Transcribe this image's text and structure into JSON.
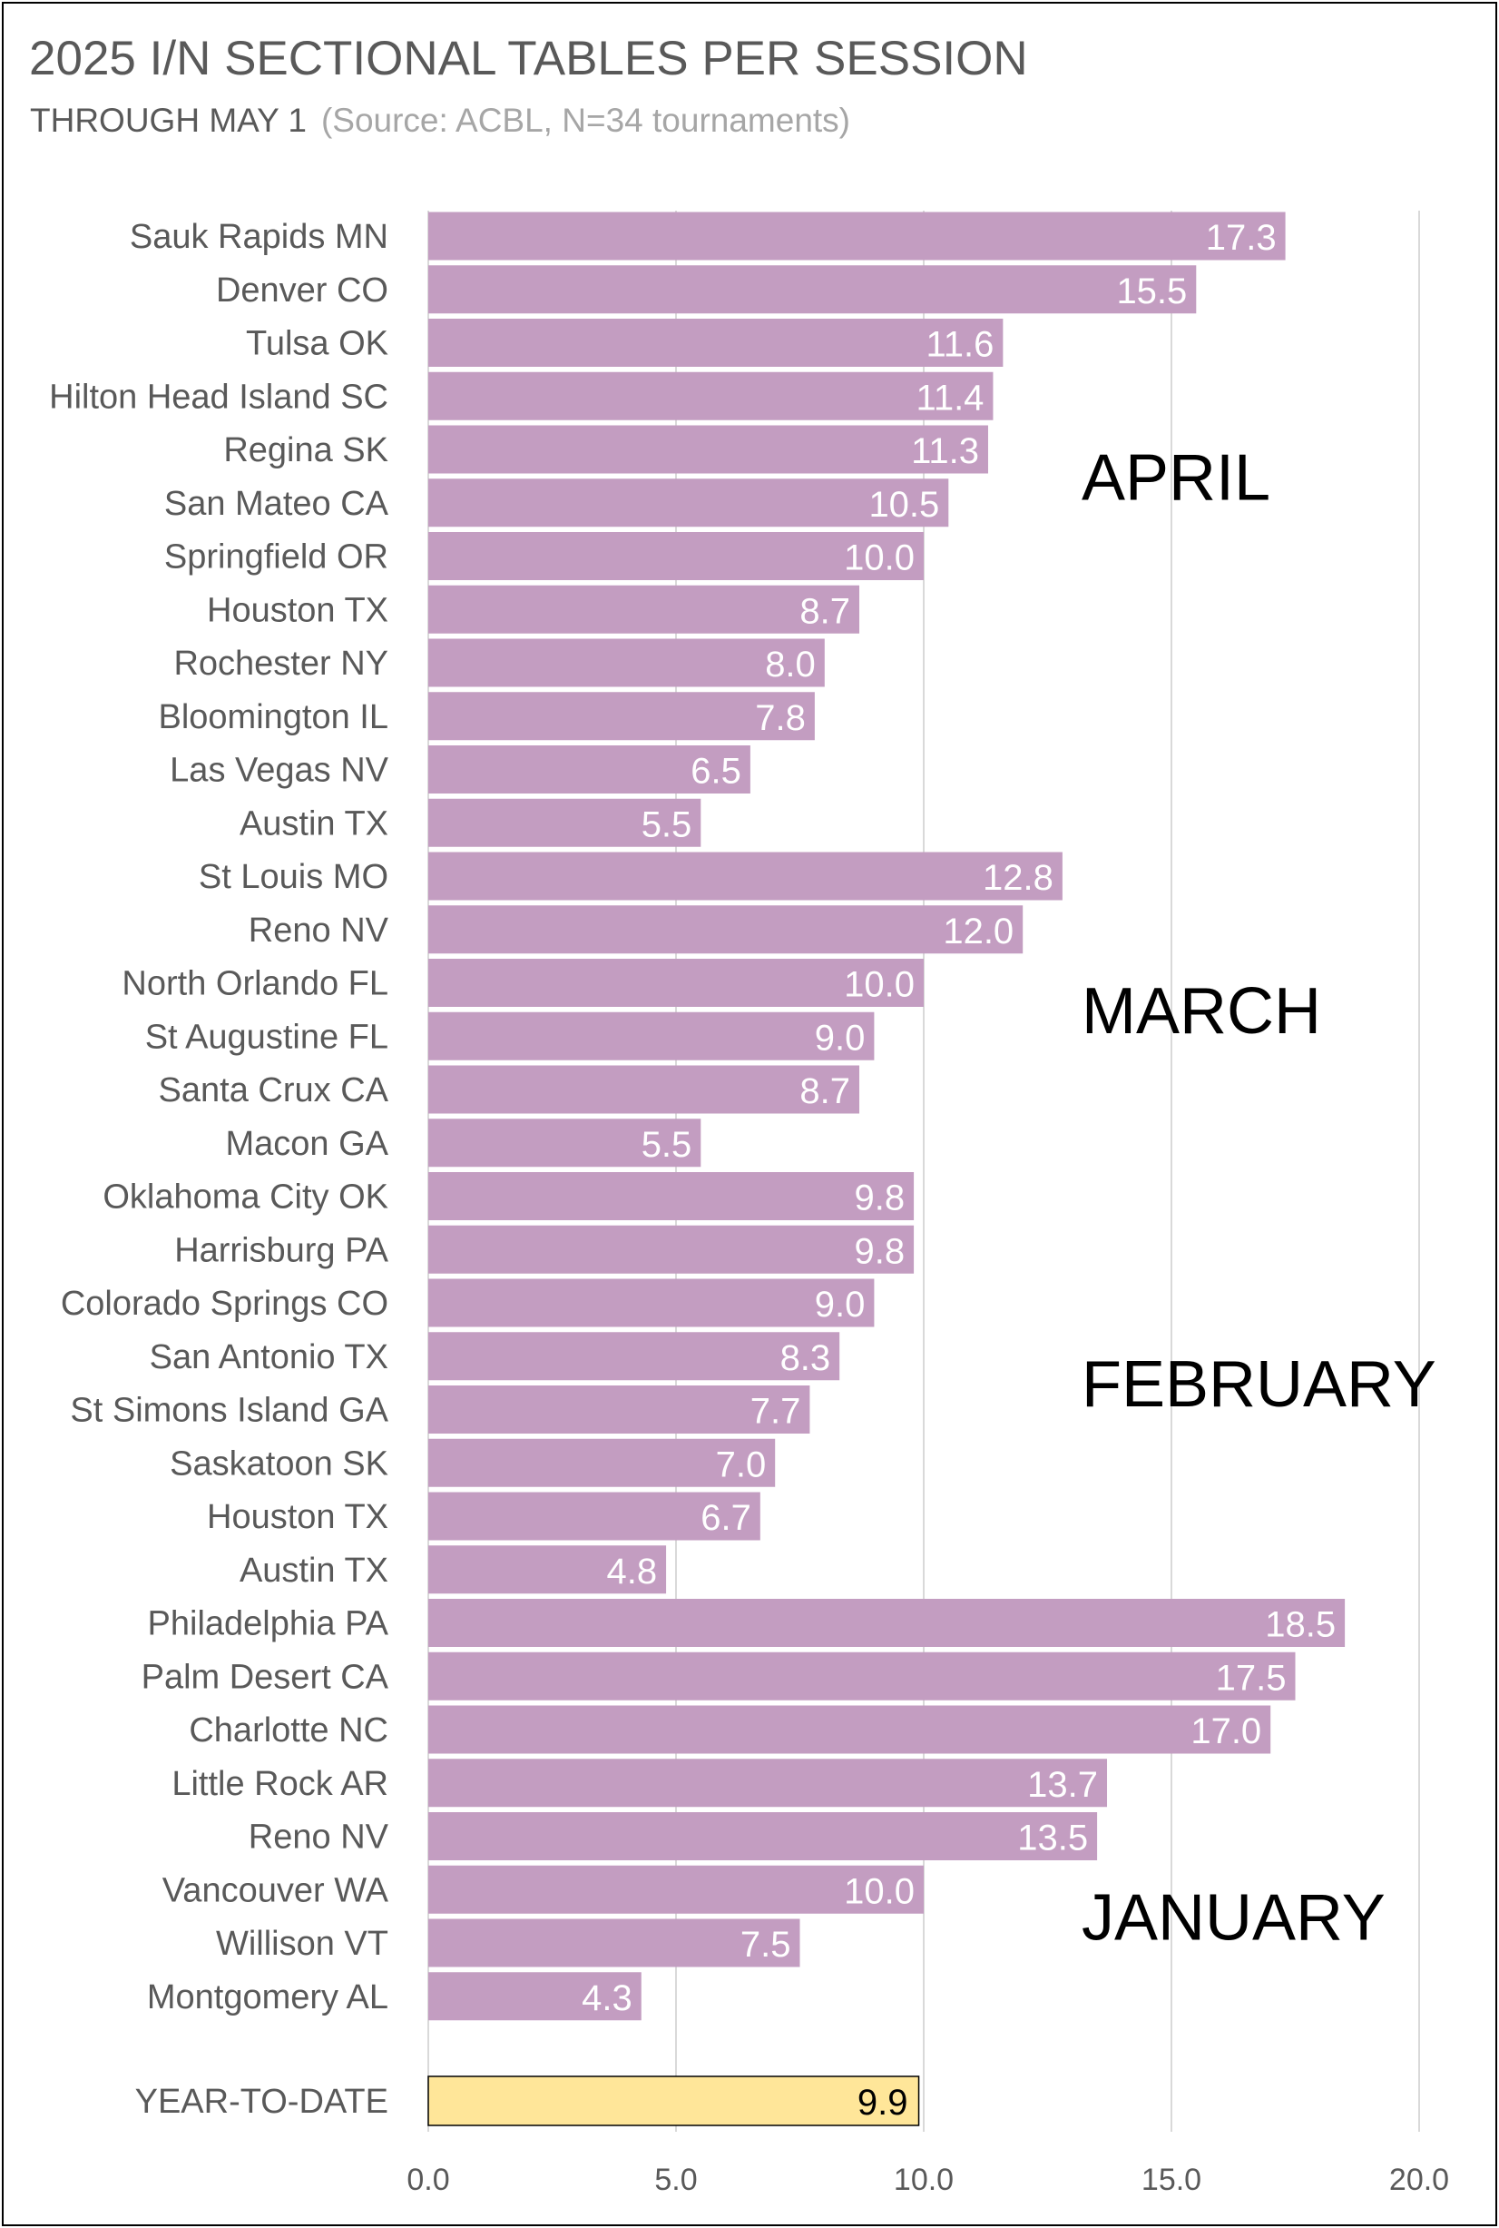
{
  "chart_data": {
    "type": "bar",
    "orientation": "horizontal",
    "title": "2025 I/N SECTIONAL TABLES PER SESSION",
    "subtitle": "THROUGH MAY 1",
    "source_note": "(Source: ACBL, N=34 tournaments)",
    "xlim": [
      0,
      20
    ],
    "xticks": [
      "0.0",
      "5.0",
      "10.0",
      "15.0",
      "20.0"
    ],
    "grid": true,
    "groups": [
      {
        "month": "APRIL",
        "rows": [
          {
            "category": "Sauk Rapids MN",
            "value": 17.3
          },
          {
            "category": "Denver CO",
            "value": 15.5
          },
          {
            "category": "Tulsa OK",
            "value": 11.6
          },
          {
            "category": "Hilton Head Island SC",
            "value": 11.4
          },
          {
            "category": "Regina SK",
            "value": 11.3
          },
          {
            "category": "San Mateo CA",
            "value": 10.5
          },
          {
            "category": "Springfield OR",
            "value": 10.0
          },
          {
            "category": "Houston TX",
            "value": 8.7
          },
          {
            "category": "Rochester NY",
            "value": 8.0
          },
          {
            "category": "Bloomington IL",
            "value": 7.8
          },
          {
            "category": "Las Vegas NV",
            "value": 6.5
          },
          {
            "category": "Austin TX",
            "value": 5.5
          }
        ]
      },
      {
        "month": "MARCH",
        "rows": [
          {
            "category": "St Louis MO",
            "value": 12.8
          },
          {
            "category": "Reno NV",
            "value": 12.0
          },
          {
            "category": "North Orlando FL",
            "value": 10.0
          },
          {
            "category": "St Augustine FL",
            "value": 9.0
          },
          {
            "category": "Santa Crux CA",
            "value": 8.7
          },
          {
            "category": "Macon GA",
            "value": 5.5
          }
        ]
      },
      {
        "month": "FEBRUARY",
        "rows": [
          {
            "category": "Oklahoma City OK",
            "value": 9.8
          },
          {
            "category": "Harrisburg PA",
            "value": 9.8
          },
          {
            "category": "Colorado Springs CO",
            "value": 9.0
          },
          {
            "category": "San Antonio TX",
            "value": 8.3
          },
          {
            "category": "St Simons Island GA",
            "value": 7.7
          },
          {
            "category": "Saskatoon SK",
            "value": 7.0
          },
          {
            "category": "Houston TX",
            "value": 6.7
          },
          {
            "category": "Austin TX",
            "value": 4.8
          }
        ]
      },
      {
        "month": "JANUARY",
        "rows": [
          {
            "category": "Philadelphia PA",
            "value": 18.5
          },
          {
            "category": "Palm Desert CA",
            "value": 17.5
          },
          {
            "category": "Charlotte NC",
            "value": 17.0
          },
          {
            "category": "Little Rock AR",
            "value": 13.7
          },
          {
            "category": "Reno NV",
            "value": 13.5
          },
          {
            "category": "Vancouver WA",
            "value": 10.0
          },
          {
            "category": "Willison VT",
            "value": 7.5
          },
          {
            "category": "Montgomery AL",
            "value": 4.3
          }
        ]
      }
    ],
    "summary": {
      "category": "YEAR-TO-DATE",
      "value": 9.9
    },
    "colors": {
      "bar": "#c39dc1",
      "summary_bar": "#ffe699",
      "summary_border": "#000000",
      "grid": "#d9d9d9",
      "axis_text": "#595959"
    }
  }
}
